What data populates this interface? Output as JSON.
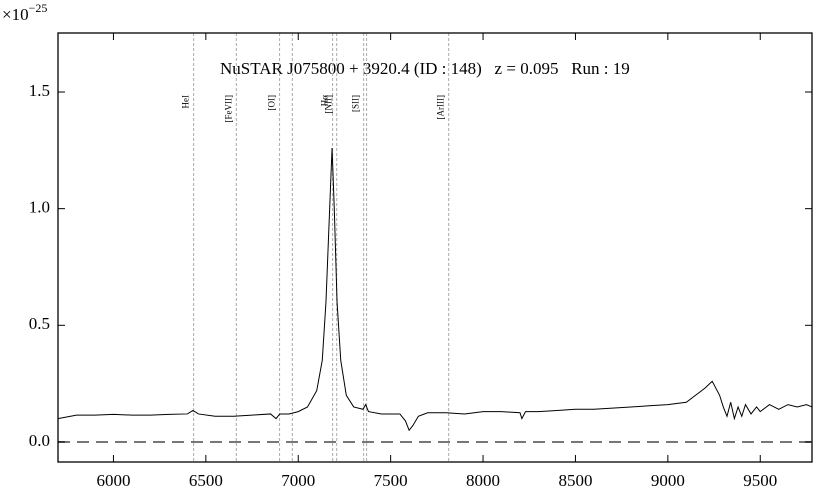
{
  "chart_data": {
    "type": "line",
    "title": "NuSTAR J075800 + 3920.4 (ID : 148)   z = 0.095   Run : 19",
    "scale_base": "×10",
    "scale_exponent": "−25",
    "xlim": [
      5700,
      9780
    ],
    "xticks": [
      6000,
      6500,
      7000,
      7500,
      8000,
      8500,
      9000,
      9500
    ],
    "ylim": [
      -0.086,
      1.753
    ],
    "yticks": [
      {
        "value": 0,
        "label": "0.0"
      },
      0.5,
      {
        "value": 1,
        "label": "1.0"
      },
      1.5
    ],
    "hline": 0,
    "hline_color": "#777777",
    "lines": {
      "color": "#aaaaaa",
      "x": [
        6434,
        6665,
        6899,
        6968,
        7186,
        7208,
        7354,
        7370,
        7814
      ],
      "labels": [
        "HeI",
        "[FeVII]",
        "[OI]",
        null,
        "Hα",
        "[NII]",
        "[SII]",
        null,
        "[ArIII]"
      ]
    },
    "series": [
      {
        "color": "#000000",
        "x": [
          5700,
          5800,
          5900,
          6000,
          6100,
          6200,
          6300,
          6400,
          6430,
          6460,
          6550,
          6650,
          6750,
          6850,
          6880,
          6900,
          6950,
          7000,
          7050,
          7100,
          7130,
          7150,
          7170,
          7183,
          7195,
          7210,
          7230,
          7260,
          7300,
          7350,
          7365,
          7380,
          7450,
          7550,
          7580,
          7600,
          7620,
          7650,
          7700,
          7800,
          7900,
          8000,
          8100,
          8200,
          8210,
          8230,
          8300,
          8400,
          8500,
          8600,
          8700,
          8800,
          8900,
          9000,
          9100,
          9150,
          9200,
          9240,
          9280,
          9300,
          9320,
          9340,
          9360,
          9380,
          9400,
          9420,
          9450,
          9480,
          9500,
          9550,
          9600,
          9650,
          9700,
          9750,
          9780
        ],
        "values": [
          0.1,
          0.115,
          0.115,
          0.118,
          0.115,
          0.115,
          0.118,
          0.12,
          0.135,
          0.12,
          0.11,
          0.11,
          0.115,
          0.12,
          0.1,
          0.12,
          0.12,
          0.13,
          0.15,
          0.22,
          0.35,
          0.6,
          1.0,
          1.26,
          1.0,
          0.6,
          0.35,
          0.2,
          0.15,
          0.14,
          0.16,
          0.13,
          0.12,
          0.12,
          0.09,
          0.05,
          0.07,
          0.11,
          0.125,
          0.125,
          0.12,
          0.13,
          0.13,
          0.125,
          0.1,
          0.13,
          0.13,
          0.135,
          0.14,
          0.14,
          0.145,
          0.15,
          0.155,
          0.16,
          0.17,
          0.2,
          0.23,
          0.26,
          0.2,
          0.15,
          0.11,
          0.17,
          0.1,
          0.15,
          0.11,
          0.16,
          0.12,
          0.15,
          0.13,
          0.16,
          0.14,
          0.16,
          0.15,
          0.16,
          0.15
        ]
      }
    ]
  }
}
